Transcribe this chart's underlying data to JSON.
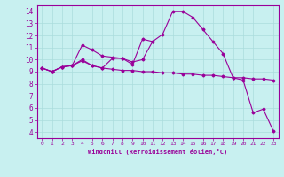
{
  "xlabel": "Windchill (Refroidissement éolien,°C)",
  "bg_color": "#c8f0f0",
  "line_color": "#990099",
  "grid_color": "#aadddd",
  "xlim": [
    -0.5,
    23.5
  ],
  "ylim": [
    3.5,
    14.5
  ],
  "xticks": [
    0,
    1,
    2,
    3,
    4,
    5,
    6,
    7,
    8,
    9,
    10,
    11,
    12,
    13,
    14,
    15,
    16,
    17,
    18,
    19,
    20,
    21,
    22,
    23
  ],
  "yticks": [
    4,
    5,
    6,
    7,
    8,
    9,
    10,
    11,
    12,
    13,
    14
  ],
  "line1_x": [
    0,
    1,
    2,
    3,
    4,
    5,
    6,
    7,
    8,
    9,
    10,
    11,
    12,
    13,
    14,
    15,
    16,
    17,
    18,
    19,
    20,
    21,
    22,
    23
  ],
  "line1_y": [
    9.3,
    9.0,
    9.4,
    9.5,
    10.0,
    9.5,
    9.3,
    9.2,
    9.1,
    9.1,
    9.0,
    9.0,
    8.9,
    8.9,
    8.8,
    8.8,
    8.7,
    8.7,
    8.6,
    8.5,
    8.5,
    8.4,
    8.4,
    8.3
  ],
  "line2_x": [
    0,
    1,
    2,
    3,
    4,
    5,
    6,
    7,
    8,
    9,
    10,
    11,
    12,
    13,
    14,
    15,
    16,
    17,
    18,
    19,
    20,
    21,
    22,
    23
  ],
  "line2_y": [
    9.3,
    9.0,
    9.4,
    9.5,
    9.9,
    9.5,
    9.3,
    10.1,
    10.1,
    9.8,
    10.0,
    11.5,
    12.1,
    14.0,
    14.0,
    13.5,
    12.5,
    11.5,
    10.5,
    8.5,
    8.3,
    5.6,
    5.9,
    4.1
  ],
  "line3_x": [
    0,
    1,
    2,
    3,
    4,
    5,
    6,
    7,
    8,
    9,
    10,
    11
  ],
  "line3_y": [
    9.3,
    9.0,
    9.4,
    9.5,
    11.2,
    10.8,
    10.3,
    10.2,
    10.1,
    9.6,
    11.7,
    11.5
  ]
}
